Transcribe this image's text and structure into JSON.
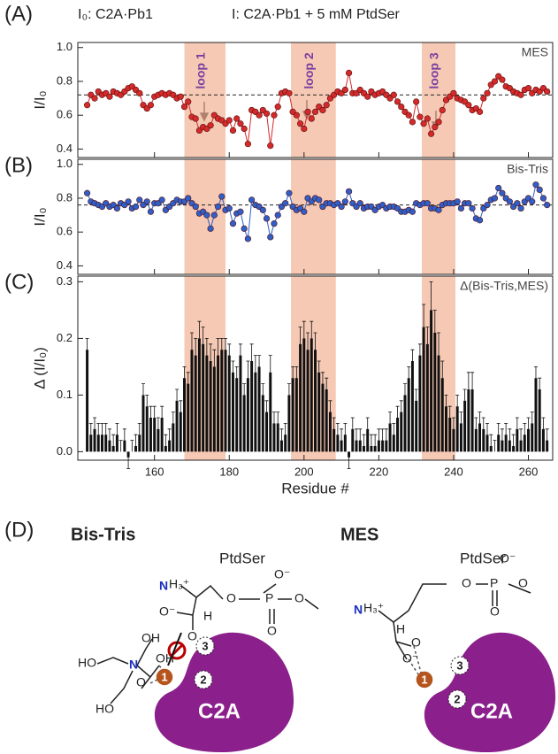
{
  "header": {
    "reference": "I₀: C2A·Pb1",
    "sample": "I: C2A·Pb1 + 5 mM PtdSer"
  },
  "loops": [
    {
      "label": "loop 1",
      "range": [
        168,
        179
      ]
    },
    {
      "label": "loop 2",
      "range": [
        196.5,
        208.5
      ]
    },
    {
      "label": "loop 3",
      "range": [
        231.5,
        240.5
      ]
    }
  ],
  "chart_data": [
    {
      "type": "line",
      "panel": "(A)",
      "label": "MES",
      "y_label": "I/I₀",
      "color": "#d42a2a",
      "reference_line": 0.72,
      "xlim": [
        139.5,
        266.5
      ],
      "ylim": [
        0.35,
        1.03
      ],
      "yticks": [
        0.4,
        0.6,
        0.8,
        {
          "value": 1,
          "label": "1.0"
        }
      ],
      "x": [
        142,
        143,
        144,
        145,
        146,
        147,
        148,
        149,
        150,
        151,
        152,
        153,
        154,
        155,
        156,
        157,
        158,
        159,
        160,
        161,
        162,
        163,
        164,
        165,
        166,
        167,
        168,
        169,
        170,
        171,
        172,
        173,
        174,
        175,
        176,
        177,
        178,
        179,
        180,
        181,
        182,
        183,
        184,
        185,
        186,
        187,
        188,
        189,
        190,
        191,
        192,
        193,
        194,
        195,
        196,
        197,
        198,
        199,
        200,
        201,
        202,
        203,
        204,
        205,
        206,
        207,
        208,
        209,
        210,
        211,
        212,
        213,
        214,
        215,
        216,
        217,
        218,
        219,
        220,
        221,
        222,
        223,
        224,
        225,
        226,
        227,
        228,
        229,
        230,
        231,
        232,
        233,
        234,
        235,
        236,
        237,
        238,
        239,
        240,
        241,
        242,
        243,
        244,
        245,
        246,
        247,
        248,
        249,
        250,
        251,
        252,
        253,
        254,
        255,
        256,
        257,
        258,
        259,
        260,
        261,
        262,
        263,
        264,
        265
      ],
      "values": [
        0.66,
        0.72,
        0.7,
        0.74,
        0.72,
        0.73,
        0.71,
        0.74,
        0.73,
        0.72,
        0.74,
        0.76,
        0.77,
        0.75,
        0.73,
        0.66,
        0.64,
        0.66,
        0.71,
        0.72,
        0.73,
        0.72,
        0.73,
        0.72,
        0.7,
        0.71,
        0.65,
        0.68,
        0.59,
        0.58,
        0.51,
        0.53,
        0.52,
        0.54,
        0.6,
        0.58,
        0.57,
        0.55,
        0.57,
        0.51,
        0.58,
        0.55,
        0.52,
        0.43,
        0.63,
        0.62,
        0.6,
        0.63,
        0.61,
        0.42,
        0.6,
        0.65,
        0.73,
        0.74,
        0.73,
        0.62,
        0.6,
        0.55,
        0.52,
        0.62,
        0.58,
        0.62,
        0.65,
        0.63,
        0.66,
        0.7,
        0.72,
        0.74,
        0.73,
        0.75,
        0.85,
        0.73,
        0.73,
        0.75,
        0.73,
        0.71,
        0.74,
        0.72,
        0.73,
        0.74,
        0.72,
        0.7,
        0.72,
        0.68,
        0.65,
        0.62,
        0.6,
        0.56,
        0.68,
        0.59,
        0.55,
        0.58,
        0.49,
        0.53,
        0.56,
        0.63,
        0.69,
        0.71,
        0.73,
        0.7,
        0.69,
        0.68,
        0.66,
        0.63,
        0.64,
        0.62,
        0.7,
        0.73,
        0.78,
        0.8,
        0.83,
        0.81,
        0.77,
        0.76,
        0.74,
        0.73,
        0.72,
        0.75,
        0.76,
        0.73,
        0.75,
        0.74,
        0.76,
        0.74
      ]
    },
    {
      "type": "line",
      "panel": "(B)",
      "label": "Bis-Tris",
      "y_label": "I/I₀",
      "color": "#2f5fc8",
      "reference_line": 0.76,
      "xlim": [
        139.5,
        266.5
      ],
      "ylim": [
        0.35,
        1.03
      ],
      "yticks": [
        0.4,
        0.6,
        0.8,
        {
          "value": 1,
          "label": "1.0"
        }
      ],
      "x": [
        142,
        143,
        144,
        145,
        146,
        147,
        148,
        149,
        150,
        151,
        152,
        153,
        154,
        155,
        156,
        157,
        158,
        159,
        160,
        161,
        162,
        163,
        164,
        165,
        166,
        167,
        168,
        169,
        170,
        171,
        172,
        173,
        174,
        175,
        176,
        177,
        178,
        179,
        180,
        181,
        182,
        183,
        184,
        185,
        186,
        187,
        188,
        189,
        190,
        191,
        192,
        193,
        194,
        195,
        196,
        197,
        198,
        199,
        200,
        201,
        202,
        203,
        204,
        205,
        206,
        207,
        208,
        209,
        210,
        211,
        212,
        213,
        214,
        215,
        216,
        217,
        218,
        219,
        220,
        221,
        222,
        223,
        224,
        225,
        226,
        227,
        228,
        229,
        230,
        231,
        232,
        233,
        234,
        235,
        236,
        237,
        238,
        239,
        240,
        241,
        242,
        243,
        244,
        245,
        246,
        247,
        248,
        249,
        250,
        251,
        252,
        253,
        254,
        255,
        256,
        257,
        258,
        259,
        260,
        261,
        262,
        263,
        264,
        265
      ],
      "values": [
        0.83,
        0.78,
        0.77,
        0.76,
        0.75,
        0.77,
        0.75,
        0.76,
        0.74,
        0.77,
        0.76,
        0.78,
        0.74,
        0.75,
        0.79,
        0.76,
        0.78,
        0.72,
        0.77,
        0.77,
        0.79,
        0.73,
        0.75,
        0.77,
        0.79,
        0.78,
        0.78,
        0.8,
        0.77,
        0.75,
        0.71,
        0.72,
        0.7,
        0.62,
        0.7,
        0.75,
        0.81,
        0.73,
        0.74,
        0.65,
        0.71,
        0.72,
        0.62,
        0.56,
        0.79,
        0.76,
        0.75,
        0.73,
        0.68,
        0.57,
        0.65,
        0.7,
        0.75,
        0.77,
        0.83,
        0.75,
        0.73,
        0.74,
        0.72,
        0.8,
        0.78,
        0.8,
        0.79,
        0.75,
        0.77,
        0.77,
        0.76,
        0.77,
        0.75,
        0.78,
        0.84,
        0.77,
        0.75,
        0.77,
        0.74,
        0.75,
        0.75,
        0.73,
        0.75,
        0.76,
        0.74,
        0.75,
        0.75,
        0.74,
        0.72,
        0.72,
        0.73,
        0.72,
        0.77,
        0.76,
        0.77,
        0.77,
        0.74,
        0.74,
        0.73,
        0.76,
        0.77,
        0.77,
        0.77,
        0.78,
        0.74,
        0.77,
        0.77,
        0.74,
        0.68,
        0.67,
        0.74,
        0.76,
        0.79,
        0.8,
        0.86,
        0.83,
        0.8,
        0.78,
        0.75,
        0.77,
        0.74,
        0.78,
        0.8,
        0.78,
        0.88,
        0.85,
        0.8,
        0.76
      ]
    },
    {
      "type": "bar",
      "panel": "(C)",
      "label": "Δ(Bis-Tris,MES)",
      "y_label": "Δ (I/I₀)",
      "x_label": "Residue #",
      "color": "#111111",
      "xlim": [
        139.5,
        266.5
      ],
      "ylim": [
        -0.015,
        0.31
      ],
      "yticks": [
        {
          "value": 0,
          "label": "0.0"
        },
        0.1,
        0.2,
        0.3
      ],
      "xticks": [
        160,
        180,
        200,
        220,
        240,
        260
      ],
      "x": [
        142,
        143,
        144,
        145,
        146,
        147,
        148,
        149,
        150,
        151,
        152,
        153,
        154,
        155,
        156,
        157,
        158,
        159,
        160,
        161,
        162,
        163,
        164,
        165,
        166,
        167,
        168,
        169,
        170,
        171,
        172,
        173,
        174,
        175,
        176,
        177,
        178,
        179,
        180,
        181,
        182,
        183,
        184,
        185,
        186,
        187,
        188,
        189,
        190,
        191,
        192,
        193,
        194,
        195,
        196,
        197,
        198,
        199,
        200,
        201,
        202,
        203,
        204,
        205,
        206,
        207,
        208,
        209,
        210,
        211,
        212,
        213,
        214,
        215,
        216,
        217,
        218,
        219,
        220,
        221,
        222,
        223,
        224,
        225,
        226,
        227,
        228,
        229,
        230,
        231,
        232,
        233,
        234,
        235,
        236,
        237,
        238,
        239,
        240,
        241,
        242,
        243,
        244,
        245,
        246,
        247,
        248,
        249,
        250,
        251,
        252,
        253,
        254,
        255,
        256,
        257,
        258,
        259,
        260,
        261,
        262,
        263,
        264,
        265
      ],
      "values": [
        0.18,
        0.03,
        0.04,
        0.03,
        0.03,
        0.03,
        0.02,
        0.01,
        0.03,
        0.0,
        0.02,
        -0.01,
        0.0,
        0.01,
        0.03,
        0.1,
        0.08,
        0.06,
        0.06,
        0.04,
        0.06,
        0.01,
        0.02,
        0.05,
        0.09,
        0.07,
        0.13,
        0.12,
        0.18,
        0.17,
        0.2,
        0.19,
        0.17,
        0.16,
        0.15,
        0.17,
        0.18,
        0.18,
        0.17,
        0.14,
        0.13,
        0.17,
        0.1,
        0.13,
        0.16,
        0.14,
        0.15,
        0.1,
        0.07,
        0.14,
        0.05,
        0.05,
        0.02,
        0.03,
        0.1,
        0.13,
        0.13,
        0.19,
        0.2,
        0.18,
        0.2,
        0.18,
        0.14,
        0.12,
        0.11,
        0.07,
        0.04,
        0.03,
        0.02,
        0.03,
        -0.01,
        0.04,
        0.02,
        0.02,
        0.01,
        0.04,
        0.01,
        0.01,
        0.02,
        0.02,
        0.02,
        0.05,
        0.03,
        0.06,
        0.07,
        0.1,
        0.13,
        0.16,
        0.09,
        0.17,
        0.22,
        0.19,
        0.25,
        0.21,
        0.17,
        0.13,
        0.08,
        0.06,
        0.04,
        0.08,
        0.05,
        0.09,
        0.11,
        0.11,
        0.04,
        0.05,
        0.04,
        0.03,
        0.01,
        0.0,
        0.03,
        0.02,
        0.03,
        0.02,
        0.01,
        0.04,
        0.02,
        0.03,
        0.04,
        0.05,
        0.13,
        0.11,
        0.04,
        0.02
      ],
      "errors": [
        0.02,
        0.02,
        0.02,
        0.02,
        0.02,
        0.02,
        0.02,
        0.02,
        0.02,
        0.02,
        0.02,
        0.02,
        0.02,
        0.02,
        0.02,
        0.02,
        0.02,
        0.02,
        0.02,
        0.02,
        0.02,
        0.02,
        0.02,
        0.02,
        0.02,
        0.02,
        0.02,
        0.02,
        0.03,
        0.03,
        0.03,
        0.03,
        0.03,
        0.03,
        0.03,
        0.03,
        0.02,
        0.02,
        0.02,
        0.02,
        0.02,
        0.02,
        0.02,
        0.03,
        0.03,
        0.03,
        0.02,
        0.02,
        0.02,
        0.03,
        0.02,
        0.02,
        0.02,
        0.02,
        0.02,
        0.02,
        0.02,
        0.03,
        0.03,
        0.03,
        0.03,
        0.03,
        0.02,
        0.02,
        0.02,
        0.02,
        0.02,
        0.02,
        0.02,
        0.02,
        0.02,
        0.02,
        0.02,
        0.02,
        0.02,
        0.02,
        0.02,
        0.02,
        0.02,
        0.02,
        0.02,
        0.02,
        0.02,
        0.02,
        0.02,
        0.02,
        0.02,
        0.02,
        0.02,
        0.02,
        0.04,
        0.03,
        0.05,
        0.04,
        0.04,
        0.03,
        0.02,
        0.02,
        0.02,
        0.02,
        0.02,
        0.02,
        0.03,
        0.03,
        0.02,
        0.02,
        0.02,
        0.02,
        0.02,
        0.02,
        0.02,
        0.02,
        0.02,
        0.02,
        0.02,
        0.02,
        0.02,
        0.02,
        0.02,
        0.02,
        0.02,
        0.02,
        0.02,
        0.02
      ]
    }
  ],
  "panel_d": {
    "label": "(D)",
    "left": {
      "title": "Bis-Tris",
      "ligand": "PtdSer",
      "protein": "C2A",
      "sites": [
        "1",
        "2",
        "3"
      ],
      "atoms": [
        "N",
        "H₃⁺",
        "O",
        "P",
        "O⁻",
        "O",
        "O",
        "O⁻",
        "O",
        "H",
        "HO",
        "N",
        "OH",
        "OH",
        "HO",
        "O"
      ]
    },
    "right": {
      "title": "MES",
      "ligand": "PtdSer",
      "protein": "C2A",
      "sites": [
        "1",
        "2",
        "3"
      ],
      "atoms": [
        "N",
        "H₃⁺",
        "O",
        "P",
        "O⁻",
        "O",
        "O",
        "O⁻",
        "O",
        "H"
      ]
    }
  }
}
